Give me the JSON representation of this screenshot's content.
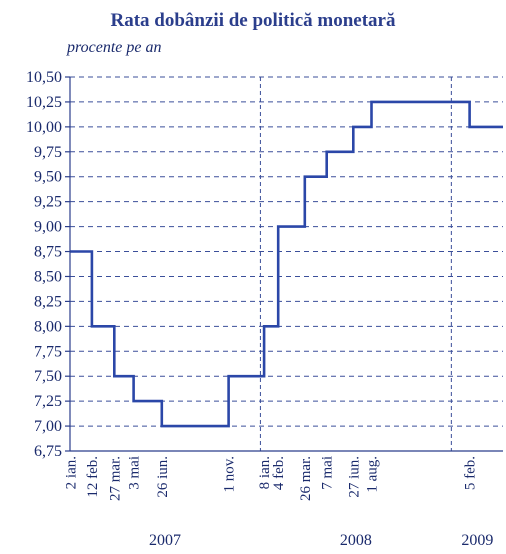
{
  "chart_data": {
    "type": "line",
    "step": "post",
    "title": "Rata dobânzii de politică monetară",
    "subtitle": "procente pe an",
    "ylim": [
      6.75,
      10.5
    ],
    "y_ticks": [
      "6,75",
      "7,00",
      "7,25",
      "7,50",
      "7,75",
      "8,00",
      "8,25",
      "8,50",
      "8,75",
      "9,00",
      "9,25",
      "9,50",
      "9,75",
      "10,00",
      "10,25",
      "10,50"
    ],
    "x_start": "2007-01-01",
    "x_end": "2009-04-10",
    "grid": "horizontal dashed",
    "year_separators": [
      "2008-01-01",
      "2009-01-01"
    ],
    "years": [
      {
        "label": "2007",
        "center": "2007-07-02"
      },
      {
        "label": "2008",
        "center": "2008-07-02"
      },
      {
        "label": "2009",
        "center": "2009-02-20"
      }
    ],
    "series": [
      {
        "color": "#2b47a8",
        "points": [
          {
            "date": "2007-01-02",
            "value": 8.75,
            "label": "2 ian."
          },
          {
            "date": "2007-02-12",
            "value": 8.0,
            "label": "12 feb."
          },
          {
            "date": "2007-03-27",
            "value": 7.5,
            "label": "27 mar."
          },
          {
            "date": "2007-05-03",
            "value": 7.25,
            "label": "3 mai"
          },
          {
            "date": "2007-06-26",
            "value": 7.0,
            "label": "26 iun."
          },
          {
            "date": "2007-11-01",
            "value": 7.5,
            "label": "1 nov."
          },
          {
            "date": "2008-01-08",
            "value": 8.0,
            "label": "8 ian."
          },
          {
            "date": "2008-02-04",
            "value": 9.0,
            "label": "4 feb."
          },
          {
            "date": "2008-03-26",
            "value": 9.5,
            "label": "26 mar."
          },
          {
            "date": "2008-05-07",
            "value": 9.75,
            "label": "7 mai"
          },
          {
            "date": "2008-06-27",
            "value": 10.0,
            "label": "27 iun."
          },
          {
            "date": "2008-08-01",
            "value": 10.25,
            "label": "1 aug."
          },
          {
            "date": "2009-02-05",
            "value": 10.0,
            "label": "5 feb."
          }
        ]
      }
    ]
  }
}
